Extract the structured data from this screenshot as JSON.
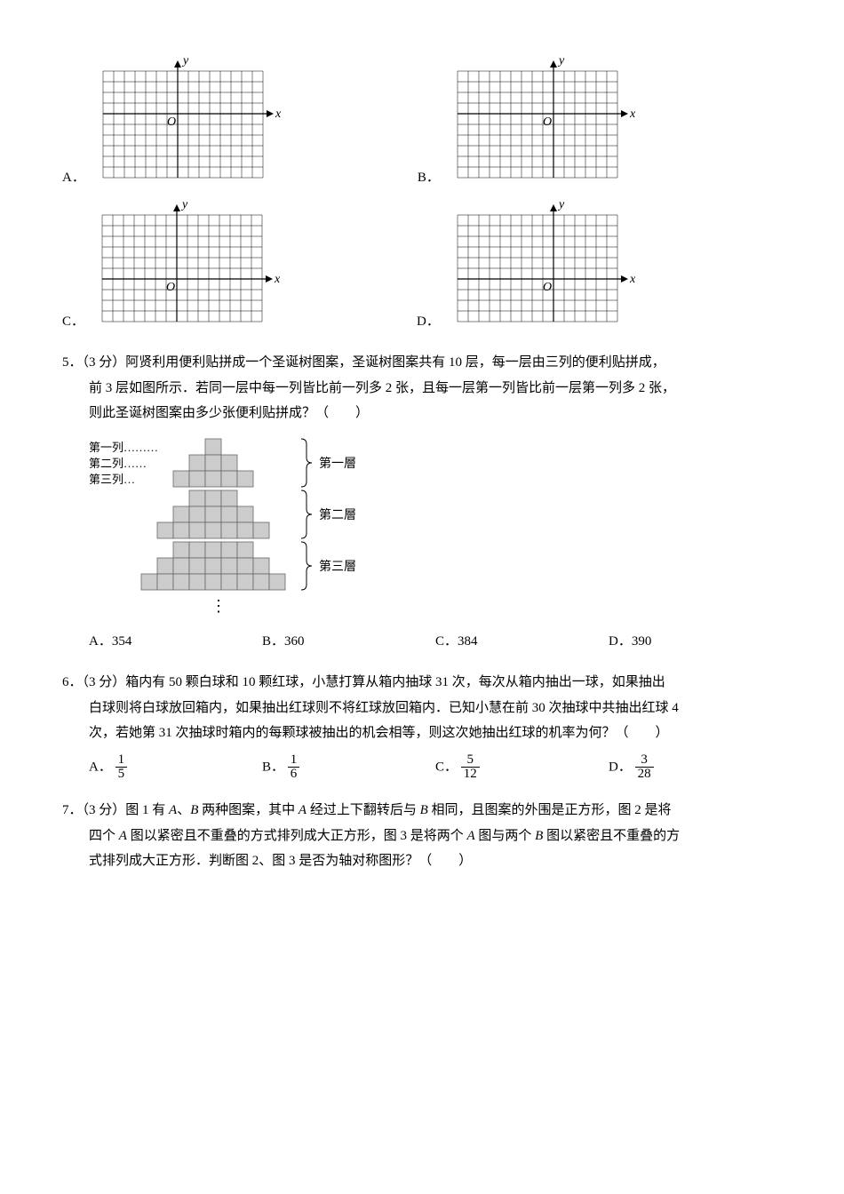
{
  "q4": {
    "grid": {
      "cols": 15,
      "rows": 10,
      "cell": 12,
      "axis_color": "#000",
      "grid_color": "#000",
      "grid_stroke": 0.5,
      "axis_stroke": 1.2
    },
    "opts": {
      "A": {
        "label": "A．",
        "origin_col": 7,
        "origin_row": 4,
        "y_label": "y",
        "x_label": "x",
        "O": "O"
      },
      "B": {
        "label": "B．",
        "origin_col": 9,
        "origin_row": 4,
        "y_label": "y",
        "x_label": "x",
        "O": "O"
      },
      "C": {
        "label": "C．",
        "origin_col": 7,
        "origin_row": 6,
        "y_label": "y",
        "x_label": "x",
        "O": "O"
      },
      "D": {
        "label": "D．",
        "origin_col": 9,
        "origin_row": 6,
        "y_label": "y",
        "x_label": "x",
        "O": "O"
      }
    }
  },
  "q5": {
    "num": "5．",
    "points": "（3 分）",
    "line1": "阿贤利用便利贴拼成一个圣诞树图案，圣诞树图案共有 10 层，每一层由三列的便利贴拼成，",
    "line2": "前 3 层如图所示．若同一层中每一列皆比前一列多 2 张，且每一层第一列皆比前一层第一列多 2 张，",
    "line3": "则此圣诞树图案由多少张便利贴拼成？（　　）",
    "fig": {
      "col_labels": [
        "第一列………",
        "第二列……",
        "第三列…"
      ],
      "layer_labels": [
        "第一層",
        "第二層",
        "第三層"
      ],
      "vdots": "⋮",
      "block_color": "#cccccc",
      "block_stroke": "#666",
      "layers": [
        {
          "rows": [
            1,
            3,
            5
          ]
        },
        {
          "rows": [
            3,
            5,
            7
          ]
        },
        {
          "rows": [
            5,
            7,
            9
          ]
        }
      ],
      "cell": 18
    },
    "choices": {
      "A": "A．354",
      "B": "B．360",
      "C": "C．384",
      "D": "D．390"
    }
  },
  "q6": {
    "num": "6．",
    "points": "（3 分）",
    "line1": "箱内有 50 颗白球和 10 颗红球，小慧打算从箱内抽球 31 次，每次从箱内抽出一球，如果抽出",
    "line2": "白球则将白球放回箱内，如果抽出红球则不将红球放回箱内．已知小慧在前 30 次抽球中共抽出红球 4",
    "line3": "次，若她第 31 次抽球时箱内的每颗球被抽出的机会相等，则这次她抽出红球的机率为何？（　　）",
    "choices": {
      "A": {
        "label": "A．",
        "num": "1",
        "den": "5"
      },
      "B": {
        "label": "B．",
        "num": "1",
        "den": "6"
      },
      "C": {
        "label": "C．",
        "num": "5",
        "den": "12"
      },
      "D": {
        "label": "D．",
        "num": "3",
        "den": "28"
      }
    }
  },
  "q7": {
    "num": "7．",
    "points": "（3 分）",
    "line1_a": "图 1 有 ",
    "A": "A",
    "line1_b": "、",
    "B": "B",
    "line1_c": " 两种图案，其中 ",
    "line1_d": " 经过上下翻转后与 ",
    "line1_e": " 相同，且图案的外围是正方形，图 2 是将",
    "line2_a": "四个 ",
    "line2_b": " 图以紧密且不重叠的方式排列成大正方形，图 3 是将两个 ",
    "line2_c": " 图与两个 ",
    "line2_d": " 图以紧密且不重叠的方",
    "line3": "式排列成大正方形．判断图 2、图 3 是否为轴对称图形？（　　）"
  }
}
